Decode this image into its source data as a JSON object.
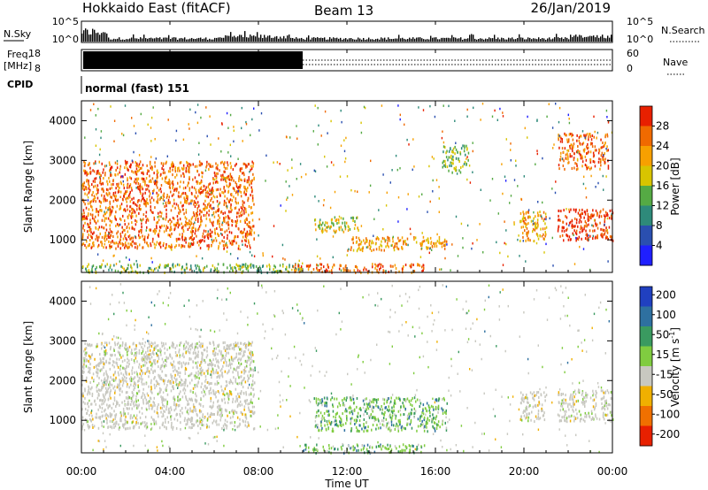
{
  "header": {
    "station": "Hokkaido East (fitACF)",
    "beam": "Beam 13",
    "date": "26/Jan/2019"
  },
  "sky_panel": {
    "label": "N.Sky",
    "left_ticks": [
      "10^5",
      "10^0"
    ],
    "right_ticks": [
      "10^5",
      "10^0"
    ],
    "right_label": "N.Search"
  },
  "freq_panel": {
    "label_line1": "Freq.",
    "label_line2": "[MHz]",
    "left_ticks": [
      "18",
      "8"
    ],
    "right_ticks": [
      "60",
      "0"
    ],
    "right_label": "Nave",
    "freq_band_end_hours": 10.0
  },
  "cpid": {
    "label": "CPID",
    "value": "normal (fast) 151"
  },
  "x_axis": {
    "label": "Time UT",
    "ticks": [
      "00:00",
      "04:00",
      "08:00",
      "12:00",
      "16:00",
      "20:00",
      "00:00"
    ],
    "range_hours": [
      0,
      24
    ]
  },
  "chart_data": [
    {
      "type": "heatmap",
      "quantity": "power",
      "ylabel": "Slant Range [km]",
      "ylim": [
        180,
        4500
      ],
      "yticks": [
        "1000",
        "2000",
        "3000",
        "4000"
      ],
      "colorbar": {
        "label": "Power [dB]",
        "ticks": [
          "4",
          "8",
          "12",
          "16",
          "20",
          "24",
          "28"
        ],
        "colors": [
          "#1f1fff",
          "#2a4fb0",
          "#2e8a7a",
          "#55aa44",
          "#d8c400",
          "#f7a000",
          "#f06a00",
          "#e82000"
        ]
      },
      "regions": [
        {
          "t": [
            0.0,
            7.8
          ],
          "r": [
            800,
            3000
          ],
          "level": 6,
          "note": "00-08 UT band"
        },
        {
          "t": [
            0.0,
            10.0
          ],
          "r": [
            200,
            420
          ],
          "level": 3
        },
        {
          "t": [
            9.5,
            15.5
          ],
          "r": [
            200,
            420
          ],
          "level": 6
        },
        {
          "t": [
            10.5,
            12.5
          ],
          "r": [
            1200,
            1600
          ],
          "level": 4
        },
        {
          "t": [
            12.0,
            16.5
          ],
          "r": [
            750,
            1100
          ],
          "level": 5
        },
        {
          "t": [
            16.3,
            17.5
          ],
          "r": [
            2700,
            3400
          ],
          "level": 3
        },
        {
          "t": [
            19.8,
            21.0
          ],
          "r": [
            1000,
            1750
          ],
          "level": 5
        },
        {
          "t": [
            21.5,
            24.0
          ],
          "r": [
            1000,
            1800
          ],
          "level": 7
        },
        {
          "t": [
            21.5,
            23.8
          ],
          "r": [
            2800,
            3700
          ],
          "level": 6
        }
      ]
    },
    {
      "type": "heatmap",
      "quantity": "velocity",
      "ylabel": "Slant Range [km]",
      "ylim": [
        180,
        4500
      ],
      "yticks": [
        "1000",
        "2000",
        "3000",
        "4000"
      ],
      "colorbar": {
        "label": "Velocity [m s",
        "label_exp": "-1",
        "label_close": "]",
        "ticks": [
          "200",
          "100",
          "50",
          "15",
          "-15",
          "-50",
          "-100",
          "-200"
        ],
        "colors": [
          "#2040c0",
          "#2e70a0",
          "#3a9a60",
          "#80cc40",
          "#c8c8c0",
          "#f0b000",
          "#f07000",
          "#e82000"
        ]
      },
      "regions": [
        {
          "t": [
            0.0,
            7.8
          ],
          "r": [
            800,
            3000
          ],
          "level": "grey"
        },
        {
          "t": [
            10.0,
            15.5
          ],
          "r": [
            200,
            420
          ],
          "level": "green"
        },
        {
          "t": [
            10.5,
            16.5
          ],
          "r": [
            750,
            1600
          ],
          "level": "green"
        },
        {
          "t": [
            19.8,
            21.0
          ],
          "r": [
            1000,
            1750
          ],
          "level": "grey"
        },
        {
          "t": [
            21.5,
            24.0
          ],
          "r": [
            1000,
            1800
          ],
          "level": "grey"
        }
      ]
    }
  ]
}
